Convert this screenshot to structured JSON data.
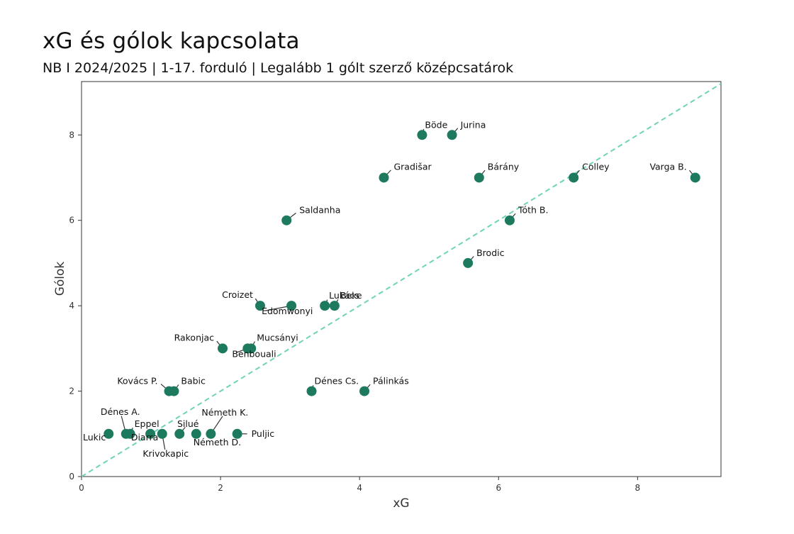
{
  "chart_data": {
    "type": "scatter",
    "title": "xG és gólok kapcsolata",
    "subtitle": "NB I 2024/2025 | 1-17. forduló | Legalább 1 gólt szerző középcsatárok",
    "xlabel": "xG",
    "ylabel": "Gólok",
    "xlim": [
      0,
      9.2
    ],
    "ylim": [
      0,
      9.25
    ],
    "xticks": [
      0,
      2,
      4,
      6,
      8
    ],
    "yticks": [
      0,
      2,
      4,
      6,
      8
    ],
    "grid": false,
    "diagonal_line": true,
    "point_color": "#1e7a5f",
    "line_color": "#6fd3b6",
    "points": [
      {
        "name": "Böde",
        "x": 4.9,
        "y": 8
      },
      {
        "name": "Jurina",
        "x": 5.33,
        "y": 8
      },
      {
        "name": "Gradišar",
        "x": 4.35,
        "y": 7
      },
      {
        "name": "Bárány",
        "x": 5.72,
        "y": 7
      },
      {
        "name": "Colley",
        "x": 7.08,
        "y": 7
      },
      {
        "name": "Varga B.",
        "x": 8.83,
        "y": 7
      },
      {
        "name": "Saldanha",
        "x": 2.95,
        "y": 6
      },
      {
        "name": "Tóth B.",
        "x": 6.16,
        "y": 6
      },
      {
        "name": "Brodic",
        "x": 5.56,
        "y": 5
      },
      {
        "name": "Croizet",
        "x": 2.57,
        "y": 4
      },
      {
        "name": "Edomwonyi",
        "x": 3.02,
        "y": 4
      },
      {
        "name": "Lukács",
        "x": 3.5,
        "y": 4
      },
      {
        "name": "Beke",
        "x": 3.64,
        "y": 4
      },
      {
        "name": "Rakonjac",
        "x": 2.03,
        "y": 3
      },
      {
        "name": "Benbouali",
        "x": 2.39,
        "y": 3
      },
      {
        "name": "Mucsányi",
        "x": 2.44,
        "y": 3
      },
      {
        "name": "Kovács P.",
        "x": 1.26,
        "y": 2
      },
      {
        "name": "Babic",
        "x": 1.33,
        "y": 2
      },
      {
        "name": "Dénes Cs.",
        "x": 3.31,
        "y": 2
      },
      {
        "name": "Pálinkás",
        "x": 4.07,
        "y": 2
      },
      {
        "name": "Lukic",
        "x": 0.39,
        "y": 1
      },
      {
        "name": "Dénes A.",
        "x": 0.64,
        "y": 1
      },
      {
        "name": "Eppel",
        "x": 0.7,
        "y": 1
      },
      {
        "name": "Diarra",
        "x": 0.99,
        "y": 1
      },
      {
        "name": "Krivokapic",
        "x": 1.16,
        "y": 1
      },
      {
        "name": "Silué",
        "x": 1.41,
        "y": 1
      },
      {
        "name": "Németh D.",
        "x": 1.65,
        "y": 1
      },
      {
        "name": "Németh K.",
        "x": 1.86,
        "y": 1
      },
      {
        "name": "Puljic",
        "x": 2.24,
        "y": 1
      }
    ]
  }
}
